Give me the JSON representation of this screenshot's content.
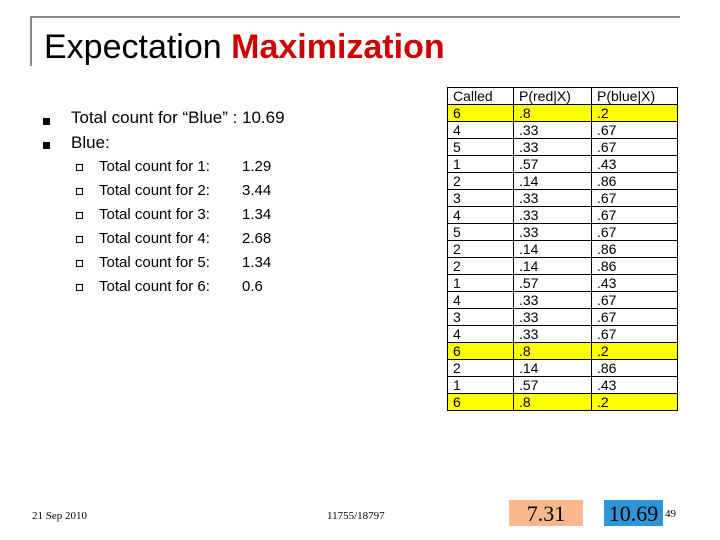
{
  "title": {
    "part1": "Expectation",
    "part2": "Maximization"
  },
  "bullets": [
    "Total count for “Blue” : 10.69",
    "Blue:"
  ],
  "sub_items": [
    {
      "label": "Total count for 1:",
      "value": "1.29"
    },
    {
      "label": "Total count for 2:",
      "value": "3.44"
    },
    {
      "label": "Total count for 3:",
      "value": "1.34"
    },
    {
      "label": "Total count for 4:",
      "value": "2.68"
    },
    {
      "label": "Total count for 5:",
      "value": "1.34"
    },
    {
      "label": "Total count for 6:",
      "value": "0.6"
    }
  ],
  "table": {
    "headers": [
      "Called",
      "P(red|X)",
      "P(blue|X)"
    ],
    "rows": [
      [
        "6",
        ".8",
        ".2"
      ],
      [
        "4",
        ".33",
        ".67"
      ],
      [
        "5",
        ".33",
        ".67"
      ],
      [
        "1",
        ".57",
        ".43"
      ],
      [
        "2",
        ".14",
        ".86"
      ],
      [
        "3",
        ".33",
        ".67"
      ],
      [
        "4",
        ".33",
        ".67"
      ],
      [
        "5",
        ".33",
        ".67"
      ],
      [
        "2",
        ".14",
        ".86"
      ],
      [
        "2",
        ".14",
        ".86"
      ],
      [
        "1",
        ".57",
        ".43"
      ],
      [
        "4",
        ".33",
        ".67"
      ],
      [
        "3",
        ".33",
        ".67"
      ],
      [
        "4",
        ".33",
        ".67"
      ],
      [
        "6",
        ".8",
        ".2"
      ],
      [
        "2",
        ".14",
        ".86"
      ],
      [
        "1",
        ".57",
        ".43"
      ],
      [
        "6",
        ".8",
        ".2"
      ]
    ],
    "highlight_color": "#ffff00",
    "highlighted_called_value": "6"
  },
  "totals": {
    "red": "7.31",
    "blue": "10.69",
    "red_bg": "#fbb88e",
    "blue_bg": "#2e96d8"
  },
  "footer": {
    "date": "21 Sep 2010",
    "course": "11755/18797",
    "page": "49"
  }
}
